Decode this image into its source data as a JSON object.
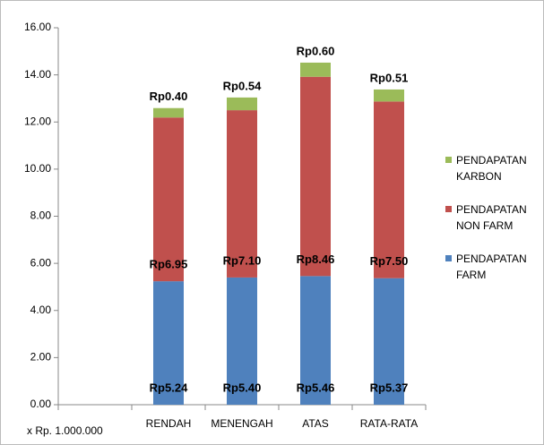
{
  "chart_data": {
    "type": "stacked_bar",
    "x_label": "x Rp. 1.000.000",
    "categories": [
      null,
      "RENDAH",
      "MENENGAH",
      "ATAS",
      "RATA-RATA"
    ],
    "series": [
      {
        "name": "PENDAPATAN FARM",
        "color": "#4f81bd",
        "values": [
          null,
          5.24,
          5.4,
          5.46,
          5.37
        ],
        "value_labels": [
          null,
          "Rp5.24",
          "Rp5.40",
          "Rp5.46",
          "Rp5.37"
        ]
      },
      {
        "name": "PENDAPATAN NON FARM",
        "color": "#c0504d",
        "values": [
          null,
          6.95,
          7.1,
          8.46,
          7.5
        ],
        "value_labels": [
          null,
          "Rp6.95",
          "Rp7.10",
          "Rp8.46",
          "Rp7.50"
        ]
      },
      {
        "name": "PENDAPATAN KARBON",
        "color": "#9bbb59",
        "values": [
          null,
          0.4,
          0.54,
          0.6,
          0.51
        ],
        "value_labels": [
          null,
          "Rp0.40",
          "Rp0.54",
          "Rp0.60",
          "Rp0.51"
        ]
      }
    ],
    "ylim": [
      0,
      16
    ],
    "yticks": [
      {
        "value": 0,
        "label": "0.00"
      },
      {
        "value": 2,
        "label": "2.00"
      },
      {
        "value": 4,
        "label": "4.00"
      },
      {
        "value": 6,
        "label": "6.00"
      },
      {
        "value": 8,
        "label": "8.00"
      },
      {
        "value": 10,
        "label": "10.00"
      },
      {
        "value": 12,
        "label": "12.00"
      },
      {
        "value": 14,
        "label": "14.00"
      },
      {
        "value": 16,
        "label": "16.00"
      }
    ],
    "legend": "right"
  }
}
